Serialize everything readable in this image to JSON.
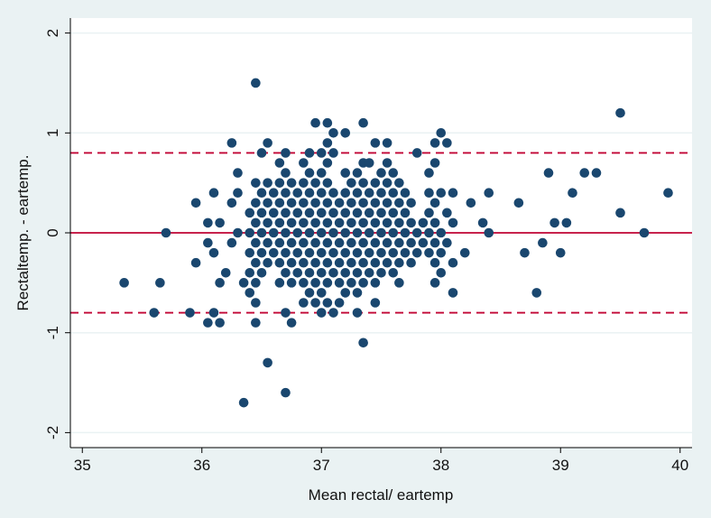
{
  "chart_data": {
    "type": "scatter",
    "title": "",
    "xlabel": "Mean rectal/ eartemp",
    "ylabel": "Rectaltemp. - eartemp.",
    "xlim": [
      34.9,
      40.1
    ],
    "ylim": [
      -2.15,
      2.15
    ],
    "xticks": [
      "35",
      "36",
      "37",
      "38",
      "39",
      "40"
    ],
    "yticks": [
      "-2",
      "-1",
      "0",
      "1",
      "2"
    ],
    "grid": true,
    "legend": "none",
    "colors": {
      "background": "#eaf2f3",
      "plot_area": "#ffffff",
      "points": "#1a476f",
      "reference_lines": "#c10534",
      "grid": "#eaf2f3"
    },
    "reference_lines": [
      {
        "y": 0.8,
        "style": "dashed"
      },
      {
        "y": 0,
        "style": "solid"
      },
      {
        "y": -0.8,
        "style": "dashed"
      }
    ],
    "points": [
      {
        "x": 35.35,
        "y": -0.5
      },
      {
        "x": 35.6,
        "y": -0.8
      },
      {
        "x": 35.65,
        "y": -0.5
      },
      {
        "x": 35.7,
        "y": 0
      },
      {
        "x": 35.9,
        "y": -0.8
      },
      {
        "x": 35.95,
        "y": 0.3
      },
      {
        "x": 35.95,
        "y": -0.3
      },
      {
        "x": 36.05,
        "y": 0.1
      },
      {
        "x": 36.05,
        "y": -0.1
      },
      {
        "x": 36.05,
        "y": -0.9
      },
      {
        "x": 36.1,
        "y": 0.4
      },
      {
        "x": 36.1,
        "y": -0.2
      },
      {
        "x": 36.1,
        "y": -0.8
      },
      {
        "x": 36.15,
        "y": 0.1
      },
      {
        "x": 36.15,
        "y": -0.5
      },
      {
        "x": 36.15,
        "y": -0.9
      },
      {
        "x": 36.2,
        "y": -0.4
      },
      {
        "x": 36.25,
        "y": 0.9
      },
      {
        "x": 36.25,
        "y": 0.3
      },
      {
        "x": 36.25,
        "y": -0.1
      },
      {
        "x": 36.3,
        "y": 0.6
      },
      {
        "x": 36.3,
        "y": 0.4
      },
      {
        "x": 36.3,
        "y": 0
      },
      {
        "x": 36.35,
        "y": -0.5
      },
      {
        "x": 36.35,
        "y": -1.7
      },
      {
        "x": 36.4,
        "y": 0.2
      },
      {
        "x": 36.4,
        "y": 0
      },
      {
        "x": 36.4,
        "y": -0.2
      },
      {
        "x": 36.4,
        "y": -0.4
      },
      {
        "x": 36.4,
        "y": -0.6
      },
      {
        "x": 36.45,
        "y": 1.5
      },
      {
        "x": 36.45,
        "y": 0.5
      },
      {
        "x": 36.45,
        "y": 0.3
      },
      {
        "x": 36.45,
        "y": 0.1
      },
      {
        "x": 36.45,
        "y": -0.1
      },
      {
        "x": 36.45,
        "y": -0.3
      },
      {
        "x": 36.45,
        "y": -0.5
      },
      {
        "x": 36.45,
        "y": -0.7
      },
      {
        "x": 36.45,
        "y": -0.9
      },
      {
        "x": 36.5,
        "y": 0.8
      },
      {
        "x": 36.5,
        "y": 0.4
      },
      {
        "x": 36.5,
        "y": 0.2
      },
      {
        "x": 36.5,
        "y": 0
      },
      {
        "x": 36.5,
        "y": -0.2
      },
      {
        "x": 36.5,
        "y": -0.4
      },
      {
        "x": 36.55,
        "y": 0.9
      },
      {
        "x": 36.55,
        "y": 0.5
      },
      {
        "x": 36.55,
        "y": 0.3
      },
      {
        "x": 36.55,
        "y": 0.1
      },
      {
        "x": 36.55,
        "y": -0.1
      },
      {
        "x": 36.55,
        "y": -0.3
      },
      {
        "x": 36.55,
        "y": -1.3
      },
      {
        "x": 36.6,
        "y": 0.4
      },
      {
        "x": 36.6,
        "y": 0.2
      },
      {
        "x": 36.6,
        "y": 0
      },
      {
        "x": 36.6,
        "y": -0.2
      },
      {
        "x": 36.65,
        "y": 0.7
      },
      {
        "x": 36.65,
        "y": 0.5
      },
      {
        "x": 36.65,
        "y": 0.3
      },
      {
        "x": 36.65,
        "y": 0.1
      },
      {
        "x": 36.65,
        "y": -0.1
      },
      {
        "x": 36.65,
        "y": -0.3
      },
      {
        "x": 36.65,
        "y": -0.5
      },
      {
        "x": 36.7,
        "y": 0.8
      },
      {
        "x": 36.7,
        "y": 0.6
      },
      {
        "x": 36.7,
        "y": 0.4
      },
      {
        "x": 36.7,
        "y": 0.2
      },
      {
        "x": 36.7,
        "y": 0
      },
      {
        "x": 36.7,
        "y": -0.2
      },
      {
        "x": 36.7,
        "y": -0.4
      },
      {
        "x": 36.7,
        "y": -0.8
      },
      {
        "x": 36.7,
        "y": -1.6
      },
      {
        "x": 36.75,
        "y": 0.5
      },
      {
        "x": 36.75,
        "y": 0.3
      },
      {
        "x": 36.75,
        "y": 0.1
      },
      {
        "x": 36.75,
        "y": -0.1
      },
      {
        "x": 36.75,
        "y": -0.3
      },
      {
        "x": 36.75,
        "y": -0.5
      },
      {
        "x": 36.75,
        "y": -0.9
      },
      {
        "x": 36.8,
        "y": 0.4
      },
      {
        "x": 36.8,
        "y": 0.2
      },
      {
        "x": 36.8,
        "y": 0
      },
      {
        "x": 36.8,
        "y": -0.2
      },
      {
        "x": 36.8,
        "y": -0.4
      },
      {
        "x": 36.85,
        "y": 0.7
      },
      {
        "x": 36.85,
        "y": 0.5
      },
      {
        "x": 36.85,
        "y": 0.3
      },
      {
        "x": 36.85,
        "y": 0.1
      },
      {
        "x": 36.85,
        "y": -0.1
      },
      {
        "x": 36.85,
        "y": -0.3
      },
      {
        "x": 36.85,
        "y": -0.5
      },
      {
        "x": 36.85,
        "y": -0.7
      },
      {
        "x": 36.9,
        "y": 0.8
      },
      {
        "x": 36.9,
        "y": 0.6
      },
      {
        "x": 36.9,
        "y": 0.4
      },
      {
        "x": 36.9,
        "y": 0.2
      },
      {
        "x": 36.9,
        "y": 0
      },
      {
        "x": 36.9,
        "y": -0.2
      },
      {
        "x": 36.9,
        "y": -0.4
      },
      {
        "x": 36.9,
        "y": -0.6
      },
      {
        "x": 36.95,
        "y": 1.1
      },
      {
        "x": 36.95,
        "y": 0.5
      },
      {
        "x": 36.95,
        "y": 0.3
      },
      {
        "x": 36.95,
        "y": 0.1
      },
      {
        "x": 36.95,
        "y": -0.1
      },
      {
        "x": 36.95,
        "y": -0.3
      },
      {
        "x": 36.95,
        "y": -0.5
      },
      {
        "x": 36.95,
        "y": -0.7
      },
      {
        "x": 37.0,
        "y": 0.8
      },
      {
        "x": 37.0,
        "y": 0.6
      },
      {
        "x": 37.0,
        "y": 0.4
      },
      {
        "x": 37.0,
        "y": 0.2
      },
      {
        "x": 37.0,
        "y": 0
      },
      {
        "x": 37.0,
        "y": -0.2
      },
      {
        "x": 37.0,
        "y": -0.4
      },
      {
        "x": 37.0,
        "y": -0.6
      },
      {
        "x": 37.0,
        "y": -0.8
      },
      {
        "x": 37.05,
        "y": 1.1
      },
      {
        "x": 37.05,
        "y": 0.9
      },
      {
        "x": 37.05,
        "y": 0.7
      },
      {
        "x": 37.05,
        "y": 0.5
      },
      {
        "x": 37.05,
        "y": 0.3
      },
      {
        "x": 37.05,
        "y": 0.1
      },
      {
        "x": 37.05,
        "y": -0.1
      },
      {
        "x": 37.05,
        "y": -0.3
      },
      {
        "x": 37.05,
        "y": -0.5
      },
      {
        "x": 37.05,
        "y": -0.7
      },
      {
        "x": 37.1,
        "y": 1.0
      },
      {
        "x": 37.1,
        "y": 0.8
      },
      {
        "x": 37.1,
        "y": 0.4
      },
      {
        "x": 37.1,
        "y": 0.2
      },
      {
        "x": 37.1,
        "y": 0
      },
      {
        "x": 37.1,
        "y": -0.2
      },
      {
        "x": 37.1,
        "y": -0.4
      },
      {
        "x": 37.1,
        "y": -0.8
      },
      {
        "x": 37.15,
        "y": 0.3
      },
      {
        "x": 37.15,
        "y": 0.1
      },
      {
        "x": 37.15,
        "y": -0.1
      },
      {
        "x": 37.15,
        "y": -0.3
      },
      {
        "x": 37.15,
        "y": -0.5
      },
      {
        "x": 37.15,
        "y": -0.7
      },
      {
        "x": 37.2,
        "y": 1.0
      },
      {
        "x": 37.2,
        "y": 0.6
      },
      {
        "x": 37.2,
        "y": 0.4
      },
      {
        "x": 37.2,
        "y": 0.2
      },
      {
        "x": 37.2,
        "y": 0
      },
      {
        "x": 37.2,
        "y": -0.2
      },
      {
        "x": 37.2,
        "y": -0.4
      },
      {
        "x": 37.2,
        "y": -0.6
      },
      {
        "x": 37.25,
        "y": 0.5
      },
      {
        "x": 37.25,
        "y": 0.3
      },
      {
        "x": 37.25,
        "y": 0.1
      },
      {
        "x": 37.25,
        "y": -0.1
      },
      {
        "x": 37.25,
        "y": -0.3
      },
      {
        "x": 37.25,
        "y": -0.5
      },
      {
        "x": 37.3,
        "y": 0.6
      },
      {
        "x": 37.3,
        "y": 0.4
      },
      {
        "x": 37.3,
        "y": 0.2
      },
      {
        "x": 37.3,
        "y": 0
      },
      {
        "x": 37.3,
        "y": -0.2
      },
      {
        "x": 37.3,
        "y": -0.4
      },
      {
        "x": 37.3,
        "y": -0.6
      },
      {
        "x": 37.3,
        "y": -0.8
      },
      {
        "x": 37.35,
        "y": 1.1
      },
      {
        "x": 37.35,
        "y": 0.7
      },
      {
        "x": 37.35,
        "y": 0.5
      },
      {
        "x": 37.35,
        "y": 0.3
      },
      {
        "x": 37.35,
        "y": 0.1
      },
      {
        "x": 37.35,
        "y": -0.1
      },
      {
        "x": 37.35,
        "y": -0.3
      },
      {
        "x": 37.35,
        "y": -0.5
      },
      {
        "x": 37.35,
        "y": -1.1
      },
      {
        "x": 37.4,
        "y": 0.7
      },
      {
        "x": 37.4,
        "y": 0.4
      },
      {
        "x": 37.4,
        "y": 0.2
      },
      {
        "x": 37.4,
        "y": 0
      },
      {
        "x": 37.4,
        "y": -0.2
      },
      {
        "x": 37.4,
        "y": -0.4
      },
      {
        "x": 37.45,
        "y": 0.9
      },
      {
        "x": 37.45,
        "y": 0.5
      },
      {
        "x": 37.45,
        "y": 0.3
      },
      {
        "x": 37.45,
        "y": 0.1
      },
      {
        "x": 37.45,
        "y": -0.1
      },
      {
        "x": 37.45,
        "y": -0.3
      },
      {
        "x": 37.45,
        "y": -0.5
      },
      {
        "x": 37.45,
        "y": -0.7
      },
      {
        "x": 37.5,
        "y": 0.6
      },
      {
        "x": 37.5,
        "y": 0.4
      },
      {
        "x": 37.5,
        "y": 0.2
      },
      {
        "x": 37.5,
        "y": 0
      },
      {
        "x": 37.5,
        "y": -0.2
      },
      {
        "x": 37.5,
        "y": -0.4
      },
      {
        "x": 37.55,
        "y": 0.9
      },
      {
        "x": 37.55,
        "y": 0.7
      },
      {
        "x": 37.55,
        "y": 0.5
      },
      {
        "x": 37.55,
        "y": 0.3
      },
      {
        "x": 37.55,
        "y": 0.1
      },
      {
        "x": 37.55,
        "y": -0.1
      },
      {
        "x": 37.55,
        "y": -0.3
      },
      {
        "x": 37.6,
        "y": 0.6
      },
      {
        "x": 37.6,
        "y": 0.4
      },
      {
        "x": 37.6,
        "y": 0.2
      },
      {
        "x": 37.6,
        "y": 0
      },
      {
        "x": 37.6,
        "y": -0.2
      },
      {
        "x": 37.6,
        "y": -0.4
      },
      {
        "x": 37.65,
        "y": 0.5
      },
      {
        "x": 37.65,
        "y": 0.3
      },
      {
        "x": 37.65,
        "y": 0.1
      },
      {
        "x": 37.65,
        "y": -0.1
      },
      {
        "x": 37.65,
        "y": -0.3
      },
      {
        "x": 37.65,
        "y": -0.5
      },
      {
        "x": 37.7,
        "y": 0.4
      },
      {
        "x": 37.7,
        "y": 0.2
      },
      {
        "x": 37.7,
        "y": 0
      },
      {
        "x": 37.7,
        "y": -0.2
      },
      {
        "x": 37.75,
        "y": 0.3
      },
      {
        "x": 37.75,
        "y": 0.1
      },
      {
        "x": 37.75,
        "y": -0.1
      },
      {
        "x": 37.75,
        "y": -0.3
      },
      {
        "x": 37.8,
        "y": 0.8
      },
      {
        "x": 37.8,
        "y": 0
      },
      {
        "x": 37.8,
        "y": -0.2
      },
      {
        "x": 37.85,
        "y": 0.1
      },
      {
        "x": 37.85,
        "y": -0.1
      },
      {
        "x": 37.9,
        "y": 0.6
      },
      {
        "x": 37.9,
        "y": 0.4
      },
      {
        "x": 37.9,
        "y": 0.2
      },
      {
        "x": 37.9,
        "y": 0
      },
      {
        "x": 37.9,
        "y": -0.2
      },
      {
        "x": 37.95,
        "y": 0.9
      },
      {
        "x": 37.95,
        "y": 0.7
      },
      {
        "x": 37.95,
        "y": 0.3
      },
      {
        "x": 37.95,
        "y": 0.1
      },
      {
        "x": 37.95,
        "y": -0.1
      },
      {
        "x": 37.95,
        "y": -0.3
      },
      {
        "x": 37.95,
        "y": -0.5
      },
      {
        "x": 38.0,
        "y": 1.0
      },
      {
        "x": 38.0,
        "y": 0.4
      },
      {
        "x": 38.0,
        "y": 0
      },
      {
        "x": 38.0,
        "y": -0.2
      },
      {
        "x": 38.0,
        "y": -0.4
      },
      {
        "x": 38.05,
        "y": 0.9
      },
      {
        "x": 38.05,
        "y": 0.2
      },
      {
        "x": 38.05,
        "y": -0.1
      },
      {
        "x": 38.1,
        "y": 0.4
      },
      {
        "x": 38.1,
        "y": 0.1
      },
      {
        "x": 38.1,
        "y": -0.3
      },
      {
        "x": 38.1,
        "y": -0.6
      },
      {
        "x": 38.2,
        "y": -0.2
      },
      {
        "x": 38.25,
        "y": 0.3
      },
      {
        "x": 38.35,
        "y": 0.1
      },
      {
        "x": 38.4,
        "y": 0.4
      },
      {
        "x": 38.4,
        "y": 0
      },
      {
        "x": 38.65,
        "y": 0.3
      },
      {
        "x": 38.7,
        "y": -0.2
      },
      {
        "x": 38.8,
        "y": -0.6
      },
      {
        "x": 38.85,
        "y": -0.1
      },
      {
        "x": 38.9,
        "y": 0.6
      },
      {
        "x": 38.95,
        "y": 0.1
      },
      {
        "x": 39.0,
        "y": -0.2
      },
      {
        "x": 39.05,
        "y": 0.1
      },
      {
        "x": 39.1,
        "y": 0.4
      },
      {
        "x": 39.2,
        "y": 0.6
      },
      {
        "x": 39.3,
        "y": 0.6
      },
      {
        "x": 39.5,
        "y": 1.2
      },
      {
        "x": 39.5,
        "y": 0.2
      },
      {
        "x": 39.7,
        "y": 0
      },
      {
        "x": 39.9,
        "y": 0.4
      }
    ]
  }
}
